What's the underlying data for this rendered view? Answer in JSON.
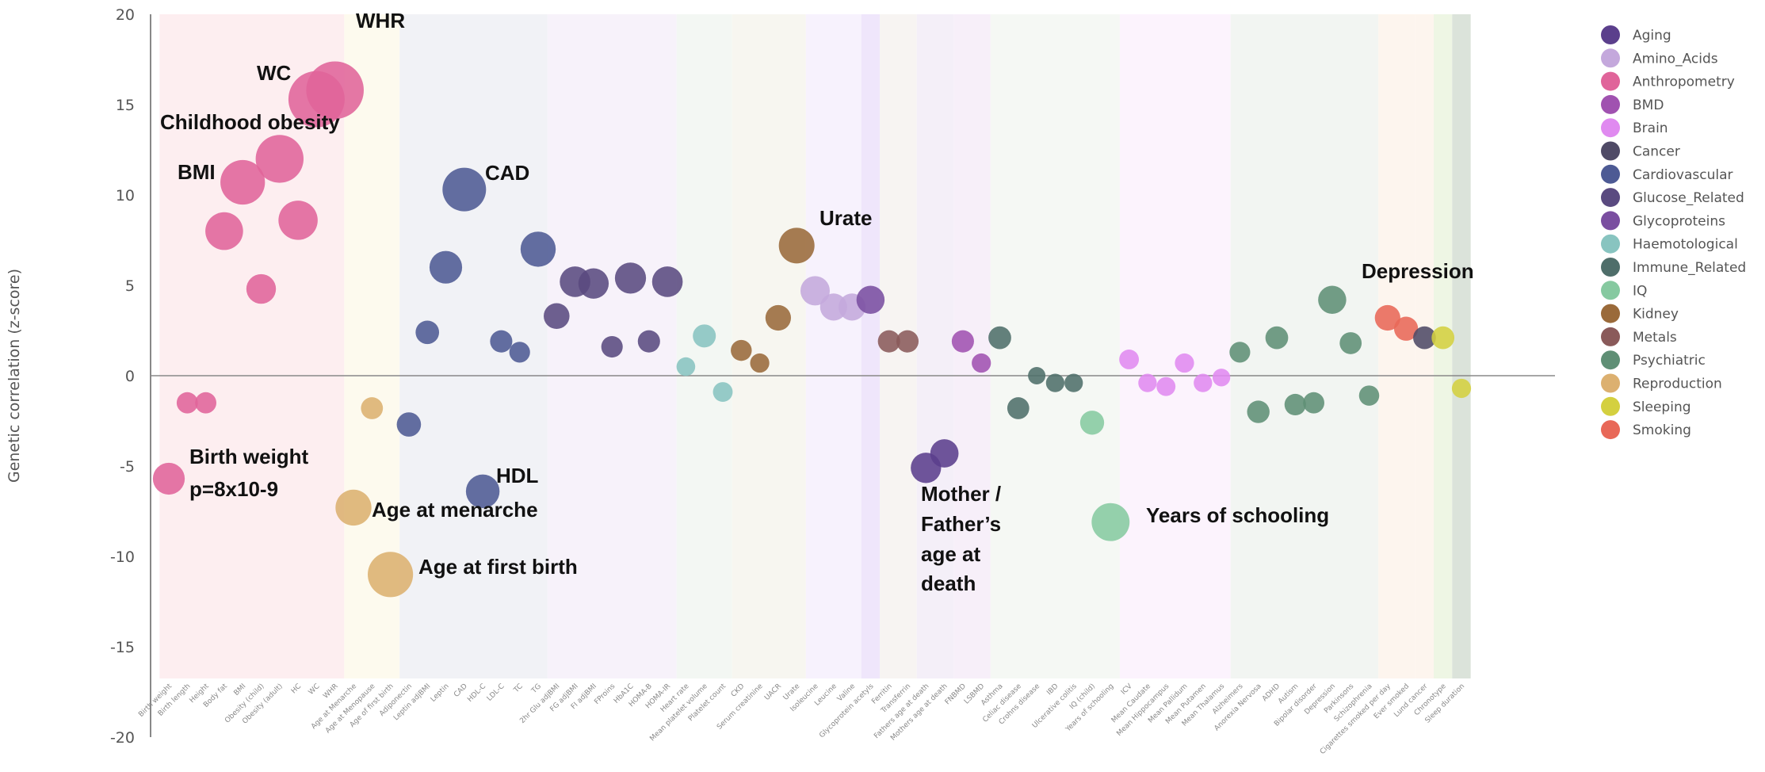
{
  "chart_data": {
    "type": "scatter",
    "title": "",
    "xlabel": "",
    "ylabel": "Genetic correlation (z-score)",
    "ylim": [
      -20,
      20
    ],
    "yticks": [
      -20,
      -15,
      -10,
      -5,
      0,
      5,
      10,
      15,
      20
    ],
    "grid": false,
    "legend_position": "right",
    "marker_size_encodes": "absolute z-score",
    "categories": [
      "Birth weight",
      "Birth length",
      "Height",
      "Body fat",
      "BMI",
      "Obesity (child)",
      "Obesity (adult)",
      "HC",
      "WC",
      "WHR",
      "Age at Menarche",
      "Age at Menopause",
      "Age of first birth",
      "Adiponectin",
      "Leptin adjBMI",
      "Leptin",
      "CAD",
      "HDL-C",
      "LDL-C",
      "TC",
      "TG",
      "2hr Glu adjBMI",
      "FG adjBMI",
      "FI adjBMI",
      "FProins",
      "HbA1C",
      "HOMA-B",
      "HOMA-IR",
      "Heart rate",
      "Mean platelet volume",
      "Platelet count",
      "CKD",
      "Serum creatinine",
      "UACR",
      "Urate",
      "Isoleucine",
      "Leucine",
      "Valine",
      "Glycoprotein acetyls",
      "Ferritin",
      "Transferrin",
      "Fathers age at death",
      "Mothers age at death",
      "FNBMD",
      "LSBMD",
      "Asthma",
      "Celiac disease",
      "Crohns disease",
      "IBD",
      "Ulcerative colitis",
      "IQ (child)",
      "Years of schooling",
      "ICV",
      "Mean Caudate",
      "Mean Hippocampus",
      "Mean Pallidum",
      "Mean Putamen",
      "Mean Thalamus",
      "Alzheimers",
      "Anorexia Nervosa",
      "ADHD",
      "Autism",
      "Bipolar disorder",
      "Depression",
      "Parkinsons",
      "Schizophrenia",
      "Cigarettes smoked per day",
      "Ever smoked",
      "Lund cancer",
      "Chronotype",
      "Sleep duration"
    ],
    "values": [
      -5.7,
      -1.5,
      -1.5,
      8.0,
      10.7,
      4.8,
      12.0,
      8.6,
      15.3,
      15.8,
      -7.3,
      -1.8,
      -11.0,
      -2.7,
      2.4,
      6.0,
      10.3,
      -6.4,
      1.9,
      1.3,
      7.0,
      3.3,
      5.2,
      5.1,
      1.6,
      5.4,
      1.9,
      5.2,
      0.5,
      2.2,
      -0.9,
      1.4,
      0.7,
      3.2,
      7.2,
      4.7,
      3.8,
      3.8,
      4.2,
      1.9,
      1.9,
      -5.1,
      -4.3,
      1.9,
      0.7,
      2.1,
      -1.8,
      0.0,
      -0.4,
      -0.4,
      -2.6,
      -8.1,
      0.9,
      -0.4,
      -0.6,
      0.7,
      -0.4,
      -0.1,
      1.3,
      -2.0,
      2.1,
      -1.6,
      -1.5,
      4.2,
      1.8,
      -1.1,
      3.2,
      2.6,
      2.1,
      2.1,
      -0.7
    ],
    "groups": [
      {
        "name": "Anthropometry",
        "color": "#e0649a",
        "band": "#fdeef0",
        "from": 0,
        "to": 9
      },
      {
        "name": "Reproduction",
        "color": "#dcb070",
        "band": "#fdfaee",
        "from": 10,
        "to": 12
      },
      {
        "name": "Cardiovascular",
        "color": "#4d5a94",
        "band": "#f1f2f6",
        "from": 13,
        "to": 20
      },
      {
        "name": "Glucose_Related",
        "color": "#5a4a80",
        "band": "#f7f2fa",
        "from": 21,
        "to": 27
      },
      {
        "name": "Haemotological",
        "color": "#88c4c0",
        "band": "#f3f7f3",
        "from": 28,
        "to": 30
      },
      {
        "name": "Kidney",
        "color": "#9a6a3a",
        "band": "#f7f6f0",
        "from": 31,
        "to": 34
      },
      {
        "name": "Amino_Acids",
        "color": "#c4a8dc",
        "band": "#f7f2fd",
        "from": 35,
        "to": 37
      },
      {
        "name": "Glycoproteins",
        "color": "#7a4ea0",
        "band": "#efe6fb",
        "from": 38,
        "to": 38
      },
      {
        "name": "Metals",
        "color": "#8a5a5a",
        "band": "#f7f4f2",
        "from": 39,
        "to": 40
      },
      {
        "name": "Aging",
        "color": "#5b3f8c",
        "band": "#f4eff8",
        "from": 41,
        "to": 42
      },
      {
        "name": "BMD",
        "color": "#a052b0",
        "band": "#f7eff9",
        "from": 43,
        "to": 44
      },
      {
        "name": "Immune_Related",
        "color": "#4f6e6a",
        "band": "#f5f8f4",
        "from": 45,
        "to": 49
      },
      {
        "name": "IQ",
        "color": "#86c9a0",
        "band": "#f5f8f4",
        "from": 50,
        "to": 51
      },
      {
        "name": "Brain",
        "color": "#e08af0",
        "band": "#fcf3fd",
        "from": 52,
        "to": 57
      },
      {
        "name": "Psychiatric",
        "color": "#5f8f75",
        "band": "#f2f5f2",
        "from": 58,
        "to": 65
      },
      {
        "name": "Smoking",
        "color": "#e86858",
        "band": "#fdf5ee",
        "from": 66,
        "to": 67
      },
      {
        "name": "Cancer",
        "color": "#4f4a66",
        "band": "#fdf5ee",
        "from": 68,
        "to": 68
      },
      {
        "name": "Sleeping",
        "color": "#d4d040",
        "band": "#eef6e4",
        "from": 69,
        "to": 69
      },
      {
        "name": "Sleeping",
        "color": "#d4d040",
        "band": "#dbe3da",
        "from": 70,
        "to": 70
      }
    ],
    "legend": [
      {
        "name": "Aging",
        "color": "#5b3f8c"
      },
      {
        "name": "Amino_Acids",
        "color": "#c4a8dc"
      },
      {
        "name": "Anthropometry",
        "color": "#e0649a"
      },
      {
        "name": "BMD",
        "color": "#a052b0"
      },
      {
        "name": "Brain",
        "color": "#e08af0"
      },
      {
        "name": "Cancer",
        "color": "#4f4a66"
      },
      {
        "name": "Cardiovascular",
        "color": "#4d5a94"
      },
      {
        "name": "Glucose_Related",
        "color": "#5a4a80"
      },
      {
        "name": "Glycoproteins",
        "color": "#7a4ea0"
      },
      {
        "name": "Haemotological",
        "color": "#88c4c0"
      },
      {
        "name": "Immune_Related",
        "color": "#4f6e6a"
      },
      {
        "name": "IQ",
        "color": "#86c9a0"
      },
      {
        "name": "Kidney",
        "color": "#9a6a3a"
      },
      {
        "name": "Metals",
        "color": "#8a5a5a"
      },
      {
        "name": "Psychiatric",
        "color": "#5f8f75"
      },
      {
        "name": "Reproduction",
        "color": "#dcb070"
      },
      {
        "name": "Sleeping",
        "color": "#d4d040"
      },
      {
        "name": "Smoking",
        "color": "#e86858"
      }
    ],
    "annotations": [
      "WHR",
      "WC",
      "Childhood obesity",
      "BMI",
      "CAD",
      "Urate",
      "Depression",
      "Birth weight",
      "p=8x10-9",
      "HDL",
      "Age at menarche",
      "Age at first birth",
      "Mother /",
      "Father’s",
      "age at",
      "death",
      "Years of schooling"
    ]
  }
}
